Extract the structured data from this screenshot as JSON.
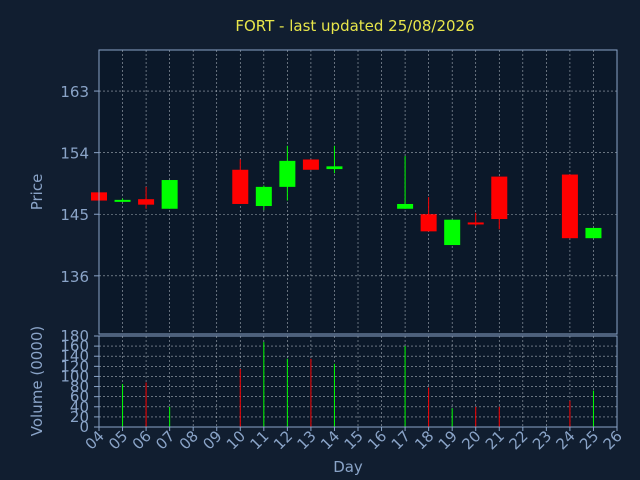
{
  "chart_data": [
    {
      "type": "candlestick",
      "title": "FORT - last updated 25/08/2026",
      "ylabel": "Price",
      "ylim": [
        127.5,
        169
      ],
      "yticks": [
        136,
        145,
        154,
        163
      ],
      "grid": true,
      "colors": {
        "up": "#00ff00",
        "down": "#ff0000",
        "grid": "#c8d0d8",
        "axis": "#8aa4c8",
        "title": "#e8e64a",
        "background": "#111e30",
        "plot_background": "#0b1829"
      },
      "candles": [
        {
          "day": "04",
          "open": 148.2,
          "high": 148.2,
          "low": 147.0,
          "close": 147.0
        },
        {
          "day": "05",
          "open": 147.0,
          "high": 147.3,
          "low": 146.8,
          "close": 147.1
        },
        {
          "day": "06",
          "open": 147.2,
          "high": 149.0,
          "low": 145.8,
          "close": 146.4
        },
        {
          "day": "07",
          "open": 145.8,
          "high": 150.0,
          "low": 145.8,
          "close": 150.0
        },
        {
          "day": "10",
          "open": 151.5,
          "high": 153.0,
          "low": 146.5,
          "close": 146.5
        },
        {
          "day": "11",
          "open": 146.2,
          "high": 149.2,
          "low": 145.6,
          "close": 149.0
        },
        {
          "day": "12",
          "open": 149.0,
          "high": 155.0,
          "low": 147.0,
          "close": 152.8
        },
        {
          "day": "13",
          "open": 153.0,
          "high": 153.0,
          "low": 151.5,
          "close": 151.5
        },
        {
          "day": "14",
          "open": 151.6,
          "high": 155.0,
          "low": 151.0,
          "close": 152.0
        },
        {
          "day": "17",
          "open": 145.8,
          "high": 153.5,
          "low": 145.8,
          "close": 146.5
        },
        {
          "day": "18",
          "open": 145.0,
          "high": 147.5,
          "low": 142.5,
          "close": 142.5
        },
        {
          "day": "19",
          "open": 140.5,
          "high": 144.2,
          "low": 140.5,
          "close": 144.2
        },
        {
          "day": "20",
          "open": 143.8,
          "high": 145.2,
          "low": 143.3,
          "close": 143.6
        },
        {
          "day": "21",
          "open": 150.5,
          "high": 150.5,
          "low": 142.8,
          "close": 144.3
        },
        {
          "day": "24",
          "open": 150.8,
          "high": 150.8,
          "low": 141.5,
          "close": 141.5
        },
        {
          "day": "25",
          "open": 141.5,
          "high": 143.0,
          "low": 141.5,
          "close": 143.0
        }
      ]
    },
    {
      "type": "bar",
      "ylabel": "Volume (0000)",
      "xlabel": "Day",
      "ylim": [
        0,
        180
      ],
      "yticks": [
        0,
        20,
        40,
        60,
        80,
        100,
        120,
        140,
        160,
        180
      ],
      "categories": [
        "04",
        "05",
        "06",
        "07",
        "08",
        "09",
        "10",
        "11",
        "12",
        "13",
        "14",
        "15",
        "16",
        "17",
        "18",
        "19",
        "20",
        "21",
        "22",
        "23",
        "24",
        "25",
        "26"
      ],
      "bars": [
        {
          "day": "05",
          "value": 85,
          "direction": "up"
        },
        {
          "day": "06",
          "value": 88,
          "direction": "down"
        },
        {
          "day": "07",
          "value": 40,
          "direction": "up"
        },
        {
          "day": "10",
          "value": 115,
          "direction": "down"
        },
        {
          "day": "11",
          "value": 168,
          "direction": "up"
        },
        {
          "day": "12",
          "value": 135,
          "direction": "up"
        },
        {
          "day": "13",
          "value": 135,
          "direction": "down"
        },
        {
          "day": "14",
          "value": 125,
          "direction": "up"
        },
        {
          "day": "17",
          "value": 160,
          "direction": "up"
        },
        {
          "day": "18",
          "value": 78,
          "direction": "down"
        },
        {
          "day": "19",
          "value": 37,
          "direction": "up"
        },
        {
          "day": "20",
          "value": 40,
          "direction": "down"
        },
        {
          "day": "21",
          "value": 40,
          "direction": "down"
        },
        {
          "day": "24",
          "value": 52,
          "direction": "down"
        },
        {
          "day": "25",
          "value": 72,
          "direction": "up"
        }
      ]
    }
  ]
}
